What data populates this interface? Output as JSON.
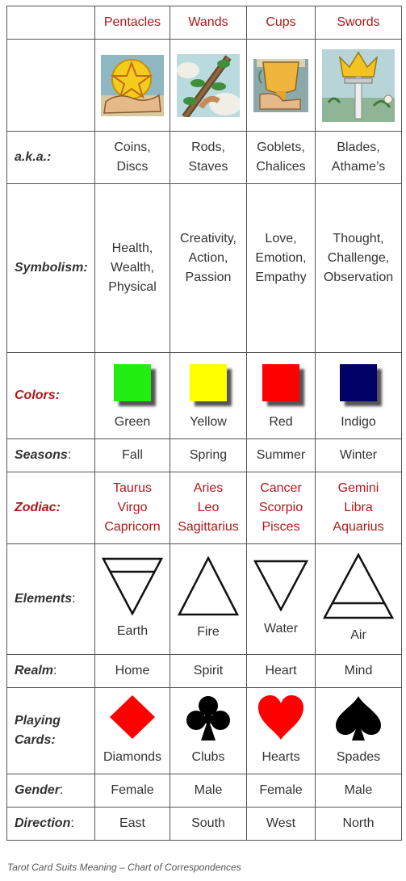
{
  "header": {
    "suits": [
      "Pentacles",
      "Wands",
      "Cups",
      "Swords"
    ]
  },
  "card_images": [
    {
      "name": "pentacle-card-icon",
      "alt": ""
    },
    {
      "name": "wand-card-icon",
      "alt": ""
    },
    {
      "name": "cup-card-icon",
      "alt": ""
    },
    {
      "name": "sword-card-icon",
      "alt": ""
    }
  ],
  "rows": {
    "aka": {
      "label": "a.k.a.:",
      "values": [
        [
          "Coins,",
          "Discs"
        ],
        [
          "Rods,",
          "Staves"
        ],
        [
          "Goblets,",
          "Chalices"
        ],
        [
          "Blades,",
          "Athame’s"
        ]
      ]
    },
    "symbolism": {
      "label": "Symbolism:",
      "values": [
        [
          "Health,",
          "Wealth,",
          "Physical"
        ],
        [
          "Creativity,",
          "Action,",
          "Passion"
        ],
        [
          "Love,",
          "Emotion,",
          "Empathy"
        ],
        [
          "Thought,",
          "Challenge,",
          "Observation"
        ]
      ]
    },
    "colors": {
      "label": "Colors:",
      "names": [
        "Green",
        "Yellow",
        "Red",
        "Indigo"
      ],
      "swatches": [
        "#22ee11",
        "#ffff00",
        "#ff0000",
        "#000066"
      ]
    },
    "seasons": {
      "label": "Seasons",
      "colon": ":",
      "values": [
        "Fall",
        "Spring",
        "Summer",
        "Winter"
      ]
    },
    "zodiac": {
      "label": "Zodiac:",
      "values": [
        [
          "Taurus",
          "Virgo",
          "Capricorn"
        ],
        [
          "Aries",
          "Leo",
          "Sagittarius"
        ],
        [
          "Cancer",
          "Scorpio",
          "Pisces"
        ],
        [
          "Gemini",
          "Libra",
          "Aquarius"
        ]
      ]
    },
    "elements": {
      "label": "Elements",
      "colon": ":",
      "values": [
        "Earth",
        "Fire",
        "Water",
        "Air"
      ]
    },
    "realm": {
      "label": "Realm",
      "colon": ":",
      "values": [
        "Home",
        "Spirit",
        "Heart",
        "Mind"
      ]
    },
    "playing_cards": {
      "label_line1": "Playing",
      "label_line2": "Cards:",
      "values": [
        "Diamonds",
        "Clubs",
        "Hearts",
        "Spades"
      ],
      "icons": [
        "diamond-suit-icon",
        "club-suit-icon",
        "heart-suit-icon",
        "spade-suit-icon"
      ]
    },
    "gender": {
      "label": "Gender",
      "colon": ":",
      "values": [
        "Female",
        "Male",
        "Female",
        "Male"
      ]
    },
    "direction": {
      "label": "Direction",
      "colon": ":",
      "values": [
        "East",
        "South",
        "West",
        "North"
      ]
    }
  },
  "caption": "Tarot Card Suits Meaning – Chart of Correspondences",
  "colors": {
    "label_red": "#b0181c",
    "text": "#333333"
  }
}
